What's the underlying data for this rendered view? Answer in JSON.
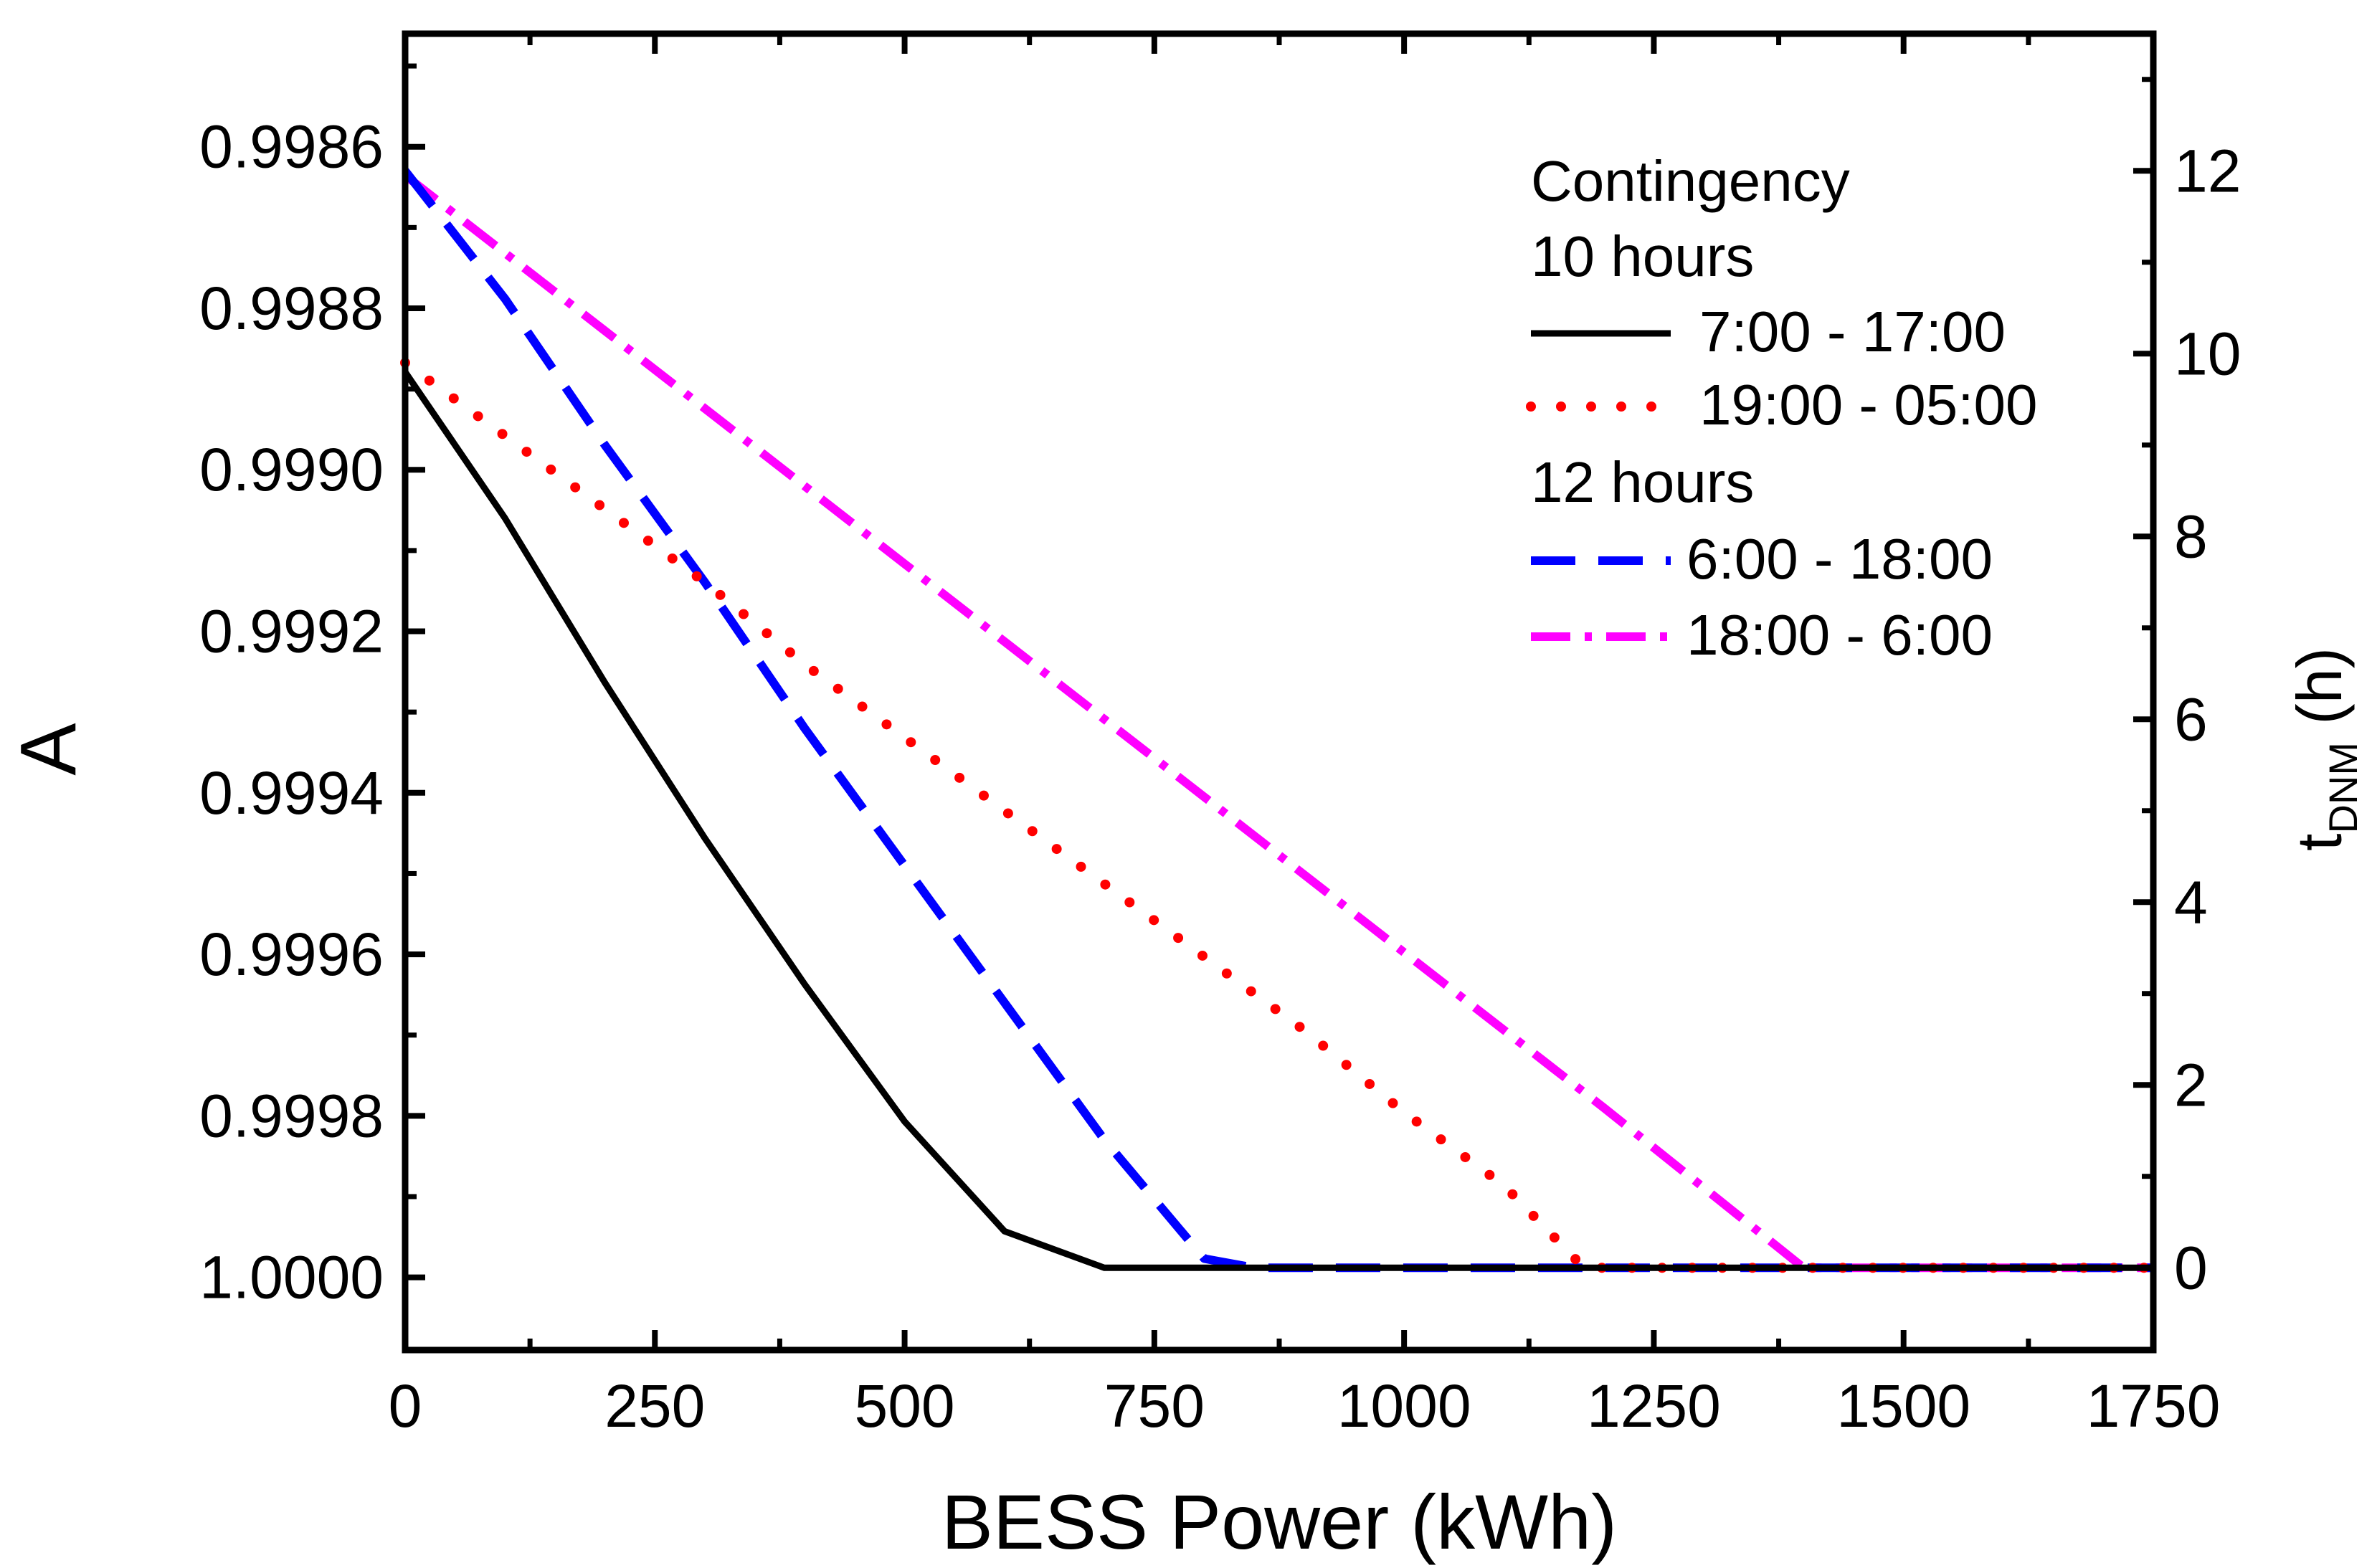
{
  "chart_data": {
    "type": "line",
    "xlabel": "BESS Power (kWh)",
    "ylabel_left": "A",
    "ylabel_right": {
      "main": "t",
      "sub": "DNM",
      "suffix": " (h)"
    },
    "xlim": [
      0,
      1750
    ],
    "left_axis": {
      "inverted": true,
      "ylim": [
        0.99846,
        1.00009
      ],
      "ticks": [
        "0.9986",
        "0.9988",
        "0.9990",
        "0.9992",
        "0.9994",
        "0.9996",
        "0.9998",
        "1.0000"
      ]
    },
    "right_axis": {
      "ylim": [
        -0.9,
        13.5
      ],
      "ticks": [
        "0",
        "2",
        "4",
        "6",
        "8",
        "10",
        "12"
      ]
    },
    "x_ticks": [
      "0",
      "250",
      "500",
      "750",
      "1000",
      "1250",
      "1500",
      "1750"
    ],
    "legend": {
      "placement": "top-right",
      "title": "Contingency",
      "groups": [
        "10 hours",
        "12 hours"
      ]
    },
    "series": [
      {
        "name": "7:00 - 17:00",
        "group": "10 hours",
        "color": "#000000",
        "style": "solid",
        "x": [
          0,
          100,
          200,
          300,
          400,
          500,
          600,
          700,
          800,
          1000,
          1200,
          1400,
          1600,
          1750
        ],
        "y": [
          9.8,
          8.2,
          6.4,
          4.7,
          3.1,
          1.6,
          0.4,
          0,
          0,
          0,
          0,
          0,
          0,
          0
        ]
      },
      {
        "name": "19:00 - 05:00",
        "group": "10 hours",
        "color": "#ff0000",
        "style": "dotted",
        "x": [
          0,
          100,
          200,
          300,
          400,
          500,
          600,
          700,
          800,
          900,
          1000,
          1100,
          1180,
          1200,
          1400,
          1600,
          1750
        ],
        "y": [
          9.9,
          9.1,
          8.3,
          7.5,
          6.6,
          5.8,
          5.0,
          4.2,
          3.4,
          2.6,
          1.7,
          0.9,
          0,
          0,
          0,
          0,
          0
        ]
      },
      {
        "name": "6:00 - 18:00",
        "group": "12 hours",
        "color": "#0000ff",
        "style": "dashed",
        "x": [
          0,
          100,
          200,
          300,
          400,
          500,
          600,
          700,
          800,
          850,
          900,
          1000,
          1200,
          1400,
          1600,
          1750
        ],
        "y": [
          12.0,
          10.6,
          9.0,
          7.5,
          5.9,
          4.4,
          2.9,
          1.4,
          0.1,
          0,
          0,
          0,
          0,
          0,
          0,
          0
        ]
      },
      {
        "name": "18:00 - 6:00",
        "group": "12 hours",
        "color": "#ff00ff",
        "style": "dashdot",
        "x": [
          0,
          200,
          400,
          600,
          800,
          1000,
          1200,
          1400,
          1600,
          1750
        ],
        "y": [
          11.95,
          10.25,
          8.55,
          6.85,
          5.15,
          3.45,
          1.75,
          0,
          0,
          0
        ]
      }
    ]
  }
}
